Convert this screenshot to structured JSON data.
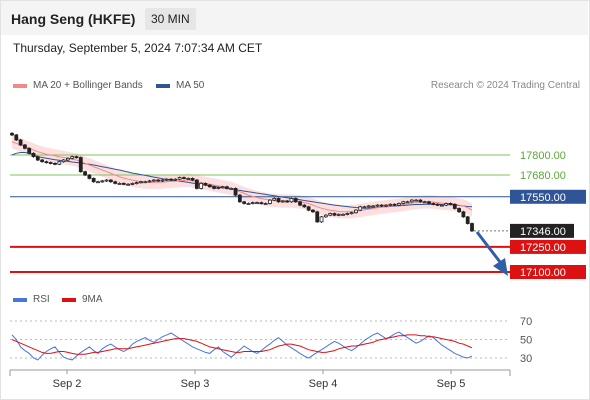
{
  "header": {
    "title": "Hang Seng (HKFE)",
    "timeframe": "30 MIN"
  },
  "date_line": "Thursday, September 5, 2024 7:07:34 AM CET",
  "legend": {
    "ma20_label": "MA 20 + Bollinger Bands",
    "ma20_color": "#f08a8a",
    "ma50_label": "MA 50",
    "ma50_color": "#2f5596",
    "credit": "Research © 2024 Trading Central"
  },
  "rsi_legend": {
    "rsi_label": "RSI",
    "rsi_color": "#4a74e0",
    "ma_label": "9MA",
    "ma_color": "#dd1111"
  },
  "chart_data": [
    {
      "type": "line",
      "subtype": "candlestick",
      "x_ticks": [
        "Sep 2",
        "Sep 3",
        "Sep 4",
        "Sep 5"
      ],
      "y_axis": {
        "min": 17050,
        "max": 17950
      },
      "grid": false,
      "levels": [
        {
          "value": 17800,
          "label": "17800.00",
          "style": "resistance"
        },
        {
          "value": 17680,
          "label": "17680.00",
          "style": "resistance"
        },
        {
          "value": 17550,
          "label": "17550.00",
          "style": "pivot"
        },
        {
          "value": 17346,
          "label": "17346.00",
          "style": "last"
        },
        {
          "value": 17250,
          "label": "17250.00",
          "style": "support"
        },
        {
          "value": 17100,
          "label": "17100.00",
          "style": "support"
        }
      ],
      "close": [
        17920,
        17890,
        17860,
        17840,
        17810,
        17790,
        17770,
        17760,
        17755,
        17750,
        17745,
        17760,
        17770,
        17780,
        17790,
        17785,
        17700,
        17680,
        17660,
        17640,
        17640,
        17645,
        17650,
        17640,
        17630,
        17630,
        17625,
        17625,
        17630,
        17635,
        17640,
        17640,
        17645,
        17650,
        17645,
        17650,
        17655,
        17650,
        17655,
        17665,
        17660,
        17660,
        17650,
        17600,
        17630,
        17620,
        17610,
        17600,
        17605,
        17610,
        17600,
        17600,
        17560,
        17520,
        17510,
        17510,
        17515,
        17515,
        17510,
        17510,
        17530,
        17540,
        17520,
        17525,
        17520,
        17540,
        17520,
        17500,
        17490,
        17470,
        17460,
        17400,
        17430,
        17440,
        17450,
        17440,
        17445,
        17445,
        17450,
        17455,
        17470,
        17490,
        17490,
        17495,
        17495,
        17500,
        17495,
        17500,
        17505,
        17500,
        17510,
        17520,
        17520,
        17530,
        17530,
        17520,
        17520,
        17510,
        17505,
        17500,
        17500,
        17510,
        17505,
        17480,
        17460,
        17430,
        17390,
        17346
      ],
      "ma20": [
        17880,
        17870,
        17860,
        17850,
        17840,
        17830,
        17820,
        17812,
        17805,
        17800,
        17795,
        17790,
        17785,
        17780,
        17775,
        17770,
        17760,
        17750,
        17740,
        17730,
        17720,
        17710,
        17700,
        17690,
        17680,
        17670,
        17662,
        17655,
        17650,
        17645,
        17640,
        17638,
        17636,
        17636,
        17637,
        17638,
        17640,
        17642,
        17644,
        17646,
        17648,
        17650,
        17645,
        17640,
        17635,
        17630,
        17625,
        17620,
        17615,
        17610,
        17605,
        17600,
        17590,
        17580,
        17570,
        17560,
        17552,
        17545,
        17540,
        17535,
        17530,
        17528,
        17526,
        17525,
        17524,
        17524,
        17522,
        17520,
        17515,
        17510,
        17500,
        17490,
        17482,
        17475,
        17470,
        17466,
        17462,
        17460,
        17460,
        17462,
        17464,
        17468,
        17472,
        17476,
        17480,
        17484,
        17488,
        17490,
        17494,
        17496,
        17500,
        17504,
        17508,
        17512,
        17515,
        17518,
        17520,
        17520,
        17518,
        17515,
        17512,
        17510,
        17508,
        17505,
        17500,
        17495,
        17485,
        17470
      ],
      "ma50": [
        17800,
        17810,
        17815,
        17815,
        17810,
        17800,
        17790,
        17785,
        17780,
        17776,
        17772,
        17768,
        17765,
        17762,
        17758,
        17755,
        17752,
        17748,
        17745,
        17740,
        17735,
        17730,
        17725,
        17720,
        17715,
        17710,
        17704,
        17698,
        17692,
        17688,
        17683,
        17678,
        17673,
        17668,
        17663,
        17658,
        17654,
        17650,
        17646,
        17643,
        17640,
        17636,
        17632,
        17628,
        17624,
        17620,
        17616,
        17612,
        17608,
        17604,
        17600,
        17596,
        17592,
        17588,
        17584,
        17580,
        17576,
        17572,
        17568,
        17564,
        17560,
        17556,
        17552,
        17548,
        17544,
        17540,
        17536,
        17532,
        17528,
        17524,
        17520,
        17516,
        17512,
        17508,
        17504,
        17500,
        17497,
        17494,
        17491,
        17488,
        17486,
        17484,
        17482,
        17482,
        17484,
        17486,
        17488,
        17490,
        17492,
        17494,
        17496,
        17498,
        17500,
        17502,
        17504,
        17504,
        17505,
        17505,
        17505,
        17505,
        17504,
        17503,
        17502,
        17500,
        17498,
        17495,
        17492,
        17490
      ]
    },
    {
      "type": "line",
      "title": "RSI",
      "y_ticks": [
        70,
        50,
        30
      ],
      "y_axis": {
        "min": 20,
        "max": 80
      },
      "series": [
        {
          "name": "RSI",
          "values": [
            55,
            50,
            42,
            38,
            35,
            30,
            28,
            33,
            37,
            40,
            42,
            36,
            31,
            29,
            28,
            32,
            36,
            39,
            42,
            38,
            35,
            40,
            43,
            45,
            42,
            39,
            37,
            40,
            45,
            48,
            50,
            52,
            49,
            47,
            50,
            53,
            55,
            57,
            54,
            51,
            48,
            45,
            42,
            40,
            38,
            36,
            35,
            39,
            42,
            37,
            34,
            31,
            35,
            39,
            43,
            40,
            37,
            35,
            38,
            42,
            45,
            49,
            52,
            48,
            44,
            41,
            38,
            35,
            32,
            30,
            33,
            36,
            39,
            42,
            45,
            48,
            46,
            43,
            40,
            38,
            41,
            45,
            49,
            52,
            55,
            57,
            54,
            51,
            53,
            56,
            58,
            55,
            52,
            49,
            46,
            48,
            51,
            54,
            52,
            48,
            44,
            41,
            38,
            35,
            33,
            31,
            30,
            32
          ]
        },
        {
          "name": "9MA",
          "values": [
            50,
            48,
            46,
            44,
            42,
            40,
            38,
            36,
            35,
            35,
            36,
            37,
            37,
            36,
            35,
            34,
            34,
            34,
            35,
            36,
            36,
            37,
            38,
            39,
            40,
            40,
            40,
            40,
            41,
            42,
            43,
            44,
            45,
            46,
            47,
            48,
            49,
            50,
            51,
            51,
            51,
            50,
            49,
            48,
            46,
            44,
            42,
            41,
            40,
            39,
            38,
            37,
            36,
            36,
            37,
            37,
            37,
            37,
            37,
            38,
            39,
            41,
            43,
            44,
            45,
            45,
            44,
            43,
            41,
            39,
            38,
            37,
            36,
            36,
            37,
            38,
            40,
            41,
            42,
            43,
            43,
            44,
            45,
            46,
            47,
            49,
            50,
            51,
            52,
            53,
            54,
            54,
            55,
            55,
            55,
            54,
            54,
            53,
            53,
            52,
            51,
            50,
            49,
            48,
            46,
            45,
            43,
            41
          ]
        }
      ]
    }
  ]
}
